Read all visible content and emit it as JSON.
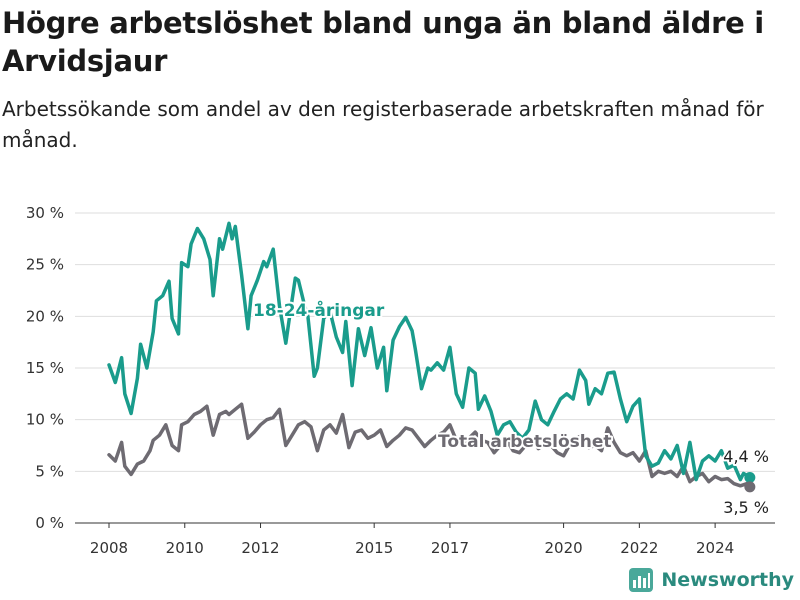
{
  "title": "Högre arbetslöshet bland unga än bland äldre i Arvidsjaur",
  "subtitle": "Arbetssökande som andel av den registerbaserade arbetskraften månad för månad.",
  "brand": "Newsworthy",
  "colors": {
    "youth": "#1a9c8c",
    "total": "#6e6b72",
    "grid": "#dedede",
    "text": "#333333"
  },
  "chart_data": {
    "type": "line",
    "title": "Högre arbetslöshet bland unga än bland äldre i Arvidsjaur",
    "ylabel": "",
    "xlabel": "",
    "ylim": [
      0,
      30
    ],
    "y_ticks": [
      "0 %",
      "5 %",
      "10 %",
      "15 %",
      "20 %",
      "25 %",
      "30 %"
    ],
    "x_ticks": [
      "2008",
      "2010",
      "2012",
      "2015",
      "2017",
      "2020",
      "2022",
      "2024"
    ],
    "grid": true,
    "series": [
      {
        "name": "18-24-åringar",
        "label": "18-24-åringar",
        "end_label": "4,4 %",
        "points": [
          [
            "2008-01",
            15.3
          ],
          [
            "2008-03",
            13.6
          ],
          [
            "2008-05",
            16.0
          ],
          [
            "2008-06",
            12.5
          ],
          [
            "2008-08",
            10.6
          ],
          [
            "2008-10",
            14.0
          ],
          [
            "2008-11",
            17.3
          ],
          [
            "2009-01",
            15.0
          ],
          [
            "2009-03",
            18.5
          ],
          [
            "2009-04",
            21.5
          ],
          [
            "2009-06",
            22.0
          ],
          [
            "2009-08",
            23.4
          ],
          [
            "2009-09",
            19.8
          ],
          [
            "2009-11",
            18.3
          ],
          [
            "2009-12",
            25.2
          ],
          [
            "2010-02",
            24.8
          ],
          [
            "2010-03",
            27.0
          ],
          [
            "2010-05",
            28.5
          ],
          [
            "2010-07",
            27.5
          ],
          [
            "2010-09",
            25.5
          ],
          [
            "2010-10",
            22.0
          ],
          [
            "2010-12",
            27.5
          ],
          [
            "2011-01",
            26.5
          ],
          [
            "2011-03",
            29.0
          ],
          [
            "2011-04",
            27.5
          ],
          [
            "2011-05",
            28.7
          ],
          [
            "2011-07",
            24.0
          ],
          [
            "2011-09",
            18.8
          ],
          [
            "2011-10",
            22.0
          ],
          [
            "2011-12",
            23.5
          ],
          [
            "2012-02",
            25.3
          ],
          [
            "2012-03",
            24.8
          ],
          [
            "2012-05",
            26.5
          ],
          [
            "2012-07",
            21.0
          ],
          [
            "2012-09",
            17.4
          ],
          [
            "2012-10",
            19.5
          ],
          [
            "2012-12",
            23.7
          ],
          [
            "2013-01",
            23.5
          ],
          [
            "2013-03",
            21.0
          ],
          [
            "2013-04",
            20.0
          ],
          [
            "2013-06",
            14.2
          ],
          [
            "2013-07",
            15.0
          ],
          [
            "2013-09",
            19.8
          ],
          [
            "2013-11",
            20.5
          ],
          [
            "2014-01",
            18.0
          ],
          [
            "2014-03",
            16.5
          ],
          [
            "2014-04",
            19.5
          ],
          [
            "2014-06",
            13.3
          ],
          [
            "2014-08",
            18.8
          ],
          [
            "2014-10",
            16.2
          ],
          [
            "2014-12",
            18.9
          ],
          [
            "2015-02",
            15.0
          ],
          [
            "2015-04",
            17.0
          ],
          [
            "2015-05",
            12.8
          ],
          [
            "2015-07",
            17.7
          ],
          [
            "2015-09",
            19.0
          ],
          [
            "2015-11",
            19.9
          ],
          [
            "2016-01",
            18.6
          ],
          [
            "2016-02",
            16.9
          ],
          [
            "2016-04",
            13.0
          ],
          [
            "2016-06",
            15.0
          ],
          [
            "2016-07",
            14.8
          ],
          [
            "2016-09",
            15.5
          ],
          [
            "2016-11",
            14.8
          ],
          [
            "2017-01",
            17.0
          ],
          [
            "2017-03",
            12.5
          ],
          [
            "2017-05",
            11.2
          ],
          [
            "2017-07",
            15.0
          ],
          [
            "2017-09",
            14.5
          ],
          [
            "2017-10",
            11.0
          ],
          [
            "2017-12",
            12.3
          ],
          [
            "2018-02",
            10.8
          ],
          [
            "2018-04",
            8.5
          ],
          [
            "2018-06",
            9.5
          ],
          [
            "2018-08",
            9.8
          ],
          [
            "2018-10",
            8.8
          ],
          [
            "2018-12",
            8.2
          ],
          [
            "2019-02",
            9.0
          ],
          [
            "2019-04",
            11.8
          ],
          [
            "2019-06",
            10.0
          ],
          [
            "2019-08",
            9.5
          ],
          [
            "2019-10",
            10.8
          ],
          [
            "2019-12",
            12.0
          ],
          [
            "2020-02",
            12.5
          ],
          [
            "2020-04",
            12.0
          ],
          [
            "2020-06",
            14.8
          ],
          [
            "2020-08",
            13.8
          ],
          [
            "2020-09",
            11.5
          ],
          [
            "2020-11",
            13.0
          ],
          [
            "2021-01",
            12.5
          ],
          [
            "2021-03",
            14.5
          ],
          [
            "2021-05",
            14.6
          ],
          [
            "2021-07",
            12.0
          ],
          [
            "2021-09",
            9.8
          ],
          [
            "2021-11",
            11.3
          ],
          [
            "2022-01",
            12.0
          ],
          [
            "2022-03",
            6.5
          ],
          [
            "2022-05",
            5.5
          ],
          [
            "2022-07",
            5.8
          ],
          [
            "2022-09",
            7.0
          ],
          [
            "2022-11",
            6.2
          ],
          [
            "2023-01",
            7.5
          ],
          [
            "2023-03",
            4.8
          ],
          [
            "2023-05",
            7.8
          ],
          [
            "2023-07",
            4.2
          ],
          [
            "2023-09",
            6.0
          ],
          [
            "2023-11",
            6.5
          ],
          [
            "2024-01",
            6.0
          ],
          [
            "2024-03",
            7.0
          ],
          [
            "2024-05",
            5.3
          ],
          [
            "2024-07",
            5.6
          ],
          [
            "2024-09",
            4.2
          ],
          [
            "2024-10",
            4.8
          ],
          [
            "2024-12",
            4.4
          ]
        ]
      },
      {
        "name": "Total arbetslöshet",
        "label": "Total arbetslöshet",
        "end_label": "3,5 %",
        "points": [
          [
            "2008-01",
            6.6
          ],
          [
            "2008-03",
            6.0
          ],
          [
            "2008-05",
            7.8
          ],
          [
            "2008-06",
            5.5
          ],
          [
            "2008-08",
            4.7
          ],
          [
            "2008-10",
            5.7
          ],
          [
            "2008-12",
            6.0
          ],
          [
            "2009-02",
            7.0
          ],
          [
            "2009-03",
            8.0
          ],
          [
            "2009-05",
            8.5
          ],
          [
            "2009-07",
            9.5
          ],
          [
            "2009-09",
            7.5
          ],
          [
            "2009-11",
            7.0
          ],
          [
            "2009-12",
            9.5
          ],
          [
            "2010-02",
            9.8
          ],
          [
            "2010-04",
            10.5
          ],
          [
            "2010-06",
            10.8
          ],
          [
            "2010-08",
            11.3
          ],
          [
            "2010-10",
            8.5
          ],
          [
            "2010-12",
            10.5
          ],
          [
            "2011-02",
            10.8
          ],
          [
            "2011-03",
            10.5
          ],
          [
            "2011-05",
            11.0
          ],
          [
            "2011-07",
            11.5
          ],
          [
            "2011-09",
            8.2
          ],
          [
            "2011-11",
            8.8
          ],
          [
            "2012-01",
            9.5
          ],
          [
            "2012-03",
            10.0
          ],
          [
            "2012-05",
            10.2
          ],
          [
            "2012-07",
            11.0
          ],
          [
            "2012-09",
            7.5
          ],
          [
            "2012-11",
            8.5
          ],
          [
            "2013-01",
            9.5
          ],
          [
            "2013-03",
            9.8
          ],
          [
            "2013-05",
            9.3
          ],
          [
            "2013-07",
            7.0
          ],
          [
            "2013-09",
            9.0
          ],
          [
            "2013-11",
            9.5
          ],
          [
            "2014-01",
            8.7
          ],
          [
            "2014-03",
            10.5
          ],
          [
            "2014-05",
            7.3
          ],
          [
            "2014-07",
            8.8
          ],
          [
            "2014-09",
            9.0
          ],
          [
            "2014-11",
            8.2
          ],
          [
            "2015-01",
            8.5
          ],
          [
            "2015-03",
            9.0
          ],
          [
            "2015-05",
            7.4
          ],
          [
            "2015-07",
            8.0
          ],
          [
            "2015-09",
            8.5
          ],
          [
            "2015-11",
            9.2
          ],
          [
            "2016-01",
            9.0
          ],
          [
            "2016-03",
            8.2
          ],
          [
            "2016-05",
            7.4
          ],
          [
            "2016-07",
            8.0
          ],
          [
            "2016-09",
            8.5
          ],
          [
            "2016-11",
            8.8
          ],
          [
            "2017-01",
            9.5
          ],
          [
            "2017-03",
            8.0
          ],
          [
            "2017-05",
            7.5
          ],
          [
            "2017-07",
            8.2
          ],
          [
            "2017-09",
            8.8
          ],
          [
            "2017-11",
            8.0
          ],
          [
            "2018-01",
            7.8
          ],
          [
            "2018-03",
            6.8
          ],
          [
            "2018-05",
            7.5
          ],
          [
            "2018-07",
            8.0
          ],
          [
            "2018-09",
            7.0
          ],
          [
            "2018-11",
            6.8
          ],
          [
            "2019-01",
            7.5
          ],
          [
            "2019-03",
            8.0
          ],
          [
            "2019-05",
            7.2
          ],
          [
            "2019-07",
            7.6
          ],
          [
            "2019-09",
            7.5
          ],
          [
            "2019-11",
            6.8
          ],
          [
            "2020-01",
            6.5
          ],
          [
            "2020-03",
            7.6
          ],
          [
            "2020-05",
            8.2
          ],
          [
            "2020-07",
            8.5
          ],
          [
            "2020-09",
            7.3
          ],
          [
            "2020-11",
            7.5
          ],
          [
            "2021-01",
            7.0
          ],
          [
            "2021-03",
            9.2
          ],
          [
            "2021-05",
            7.8
          ],
          [
            "2021-07",
            6.8
          ],
          [
            "2021-09",
            6.5
          ],
          [
            "2021-11",
            6.8
          ],
          [
            "2022-01",
            6.0
          ],
          [
            "2022-03",
            7.0
          ],
          [
            "2022-05",
            4.5
          ],
          [
            "2022-07",
            5.0
          ],
          [
            "2022-09",
            4.8
          ],
          [
            "2022-11",
            5.0
          ],
          [
            "2023-01",
            4.5
          ],
          [
            "2023-03",
            5.5
          ],
          [
            "2023-05",
            4.0
          ],
          [
            "2023-07",
            4.5
          ],
          [
            "2023-09",
            4.8
          ],
          [
            "2023-11",
            4.0
          ],
          [
            "2024-01",
            4.5
          ],
          [
            "2024-03",
            4.2
          ],
          [
            "2024-05",
            4.3
          ],
          [
            "2024-07",
            3.8
          ],
          [
            "2024-09",
            3.6
          ],
          [
            "2024-11",
            3.8
          ],
          [
            "2024-12",
            3.5
          ]
        ]
      }
    ]
  }
}
